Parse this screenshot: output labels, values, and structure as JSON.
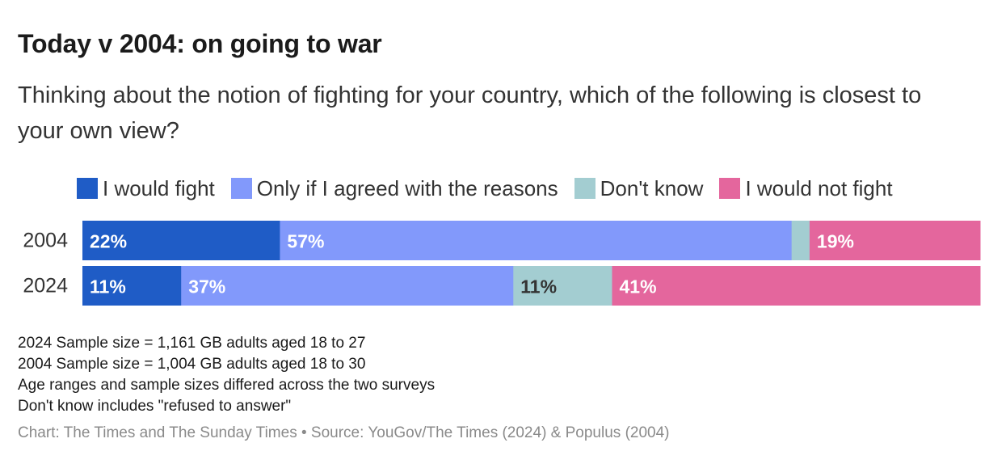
{
  "header": {
    "title": "Today v 2004: on going to war",
    "subtitle": "Thinking about the notion of fighting for your country, which of the following is closest to your own view?"
  },
  "legend": [
    {
      "label": "I would fight",
      "color": "#1f5cc6"
    },
    {
      "label": "Only if I agreed with the reasons",
      "color": "#8299fb"
    },
    {
      "label": "Don't know",
      "color": "#a3cdd1"
    },
    {
      "label": "I would not fight",
      "color": "#e4669d"
    }
  ],
  "chart_data": {
    "type": "bar",
    "orientation": "horizontal",
    "stacked": true,
    "normalized": true,
    "categories": [
      "2004",
      "2024"
    ],
    "series": [
      {
        "name": "I would fight",
        "color": "#1f5cc6",
        "values": [
          22,
          11
        ],
        "labels": [
          "22%",
          "11%"
        ],
        "label_color": "#ffffff"
      },
      {
        "name": "Only if I agreed with the reasons",
        "color": "#8299fb",
        "values": [
          57,
          37
        ],
        "labels": [
          "57%",
          "37%"
        ],
        "label_color": "#ffffff"
      },
      {
        "name": "Don't know",
        "color": "#a3cdd1",
        "values": [
          2,
          11
        ],
        "labels": [
          "",
          "11%"
        ],
        "label_color": "#333333"
      },
      {
        "name": "I would not fight",
        "color": "#e4669d",
        "values": [
          19,
          41
        ],
        "labels": [
          "19%",
          "41%"
        ],
        "label_color": "#ffffff"
      }
    ],
    "legend_position": "top",
    "grid": false
  },
  "notes": [
    "2024 Sample size = 1,161 GB adults aged 18 to 27",
    "2004 Sample size = 1,004 GB adults aged 18 to 30",
    "Age ranges and sample sizes differed across the two surveys",
    "Don't know includes \"refused to answer\""
  ],
  "source": "Chart: The Times and The Sunday Times • Source: YouGov/The Times (2024) & Populus (2004)"
}
